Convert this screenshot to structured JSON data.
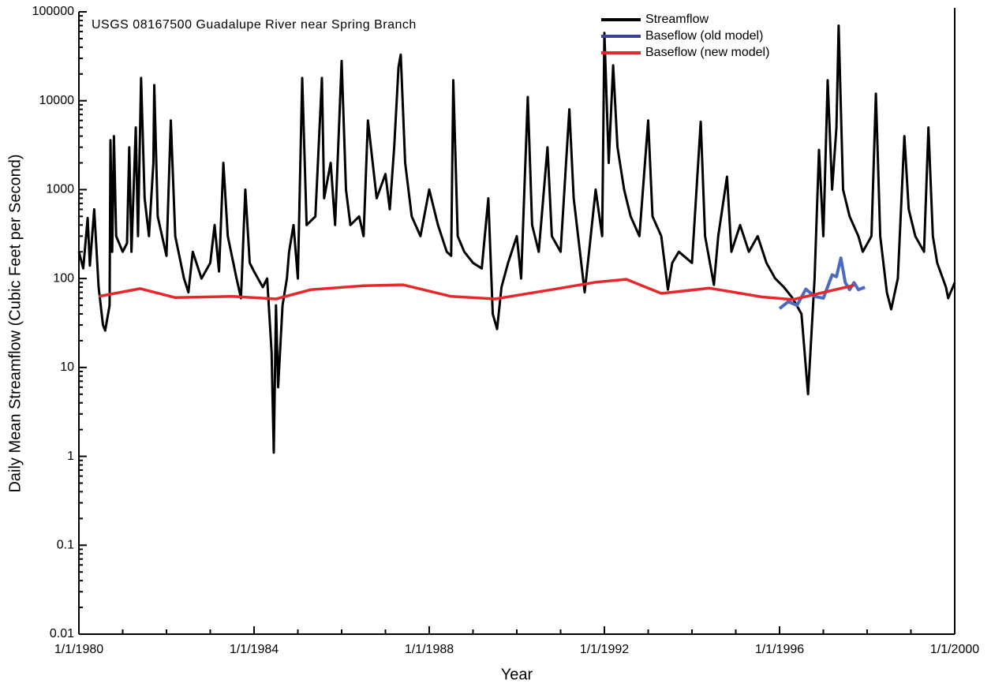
{
  "chart_data": {
    "type": "line",
    "title": "USGS 08167500 Guadalupe River near Spring Branch",
    "x_label": "Year",
    "y_label": "Daily Mean Streamflow (Cubic Feet per Second)",
    "log_y": true,
    "legend": "top-right",
    "xlim": [
      1980,
      2000
    ],
    "xticks": [
      {
        "value": 1980,
        "label": "1/1/1980"
      },
      {
        "value": 1984,
        "label": "1/1/1984"
      },
      {
        "value": 1988,
        "label": "1/1/1988"
      },
      {
        "value": 1992,
        "label": "1/1/1992"
      },
      {
        "value": 1996,
        "label": "1/1/1996"
      },
      {
        "value": 2000,
        "label": "1/1/2000"
      }
    ],
    "ylim": [
      0.01,
      100000
    ],
    "yticks": [
      0.01,
      0.1,
      1,
      10,
      100,
      1000,
      10000,
      100000
    ],
    "series": [
      {
        "name": "Streamflow",
        "color": "#000000",
        "x": [
          1980.0,
          1980.1,
          1980.2,
          1980.25,
          1980.35,
          1980.45,
          1980.55,
          1980.6,
          1980.7,
          1980.72,
          1980.76,
          1980.8,
          1980.85,
          1981.0,
          1981.1,
          1981.15,
          1981.2,
          1981.3,
          1981.35,
          1981.42,
          1981.5,
          1981.6,
          1981.7,
          1981.72,
          1981.8,
          1982.0,
          1982.1,
          1982.2,
          1982.4,
          1982.5,
          1982.6,
          1982.8,
          1983.0,
          1983.1,
          1983.2,
          1983.3,
          1983.4,
          1983.6,
          1983.7,
          1983.8,
          1983.9,
          1984.0,
          1984.2,
          1984.3,
          1984.4,
          1984.45,
          1984.5,
          1984.55,
          1984.65,
          1984.75,
          1984.8,
          1984.9,
          1985.0,
          1985.1,
          1985.2,
          1985.4,
          1985.55,
          1985.6,
          1985.75,
          1985.85,
          1986.0,
          1986.1,
          1986.2,
          1986.4,
          1986.5,
          1986.6,
          1986.8,
          1987.0,
          1987.1,
          1987.2,
          1987.3,
          1987.35,
          1987.45,
          1987.6,
          1987.8,
          1988.0,
          1988.2,
          1988.4,
          1988.5,
          1988.55,
          1988.65,
          1988.8,
          1989.0,
          1989.2,
          1989.35,
          1989.45,
          1989.55,
          1989.65,
          1989.8,
          1990.0,
          1990.1,
          1990.25,
          1990.35,
          1990.5,
          1990.7,
          1990.8,
          1991.0,
          1991.2,
          1991.3,
          1991.4,
          1991.55,
          1991.65,
          1991.8,
          1991.95,
          1992.0,
          1992.1,
          1992.2,
          1992.3,
          1992.45,
          1992.6,
          1992.8,
          1993.0,
          1993.1,
          1993.3,
          1993.45,
          1993.55,
          1993.7,
          1994.0,
          1994.2,
          1994.3,
          1994.5,
          1994.6,
          1994.8,
          1994.9,
          1995.1,
          1995.3,
          1995.5,
          1995.7,
          1995.9,
          1996.1,
          1996.3,
          1996.5,
          1996.65,
          1996.8,
          1996.9,
          1997.0,
          1997.1,
          1997.2,
          1997.3,
          1997.35,
          1997.45,
          1997.6,
          1997.8,
          1997.9,
          1998.1,
          1998.2,
          1998.3,
          1998.45,
          1998.55,
          1998.7,
          1998.85,
          1998.95,
          1999.1,
          1999.3,
          1999.4,
          1999.5,
          1999.6,
          1999.8,
          1999.85,
          2000.0
        ],
        "values": [
          200,
          130,
          480,
          140,
          600,
          80,
          30,
          26,
          50,
          3600,
          200,
          4000,
          300,
          200,
          250,
          3000,
          200,
          5000,
          300,
          18000,
          800,
          300,
          2000,
          15000,
          500,
          180,
          6000,
          300,
          100,
          70,
          200,
          100,
          150,
          400,
          120,
          2000,
          300,
          100,
          60,
          1000,
          150,
          120,
          80,
          100,
          15,
          1.1,
          50,
          6,
          50,
          100,
          200,
          400,
          100,
          18000,
          400,
          500,
          18000,
          800,
          2000,
          400,
          28000,
          1000,
          400,
          500,
          300,
          6000,
          800,
          1500,
          600,
          3000,
          24000,
          33000,
          2000,
          500,
          300,
          1000,
          400,
          200,
          180,
          17000,
          300,
          200,
          150,
          130,
          800,
          40,
          27,
          80,
          150,
          300,
          100,
          11000,
          400,
          200,
          3000,
          300,
          200,
          8000,
          800,
          300,
          70,
          200,
          1000,
          300,
          58000,
          2000,
          25000,
          3000,
          1000,
          500,
          300,
          6000,
          500,
          300,
          75,
          150,
          200,
          150,
          5800,
          300,
          85,
          300,
          1400,
          200,
          400,
          200,
          300,
          150,
          100,
          80,
          60,
          40,
          5,
          100,
          2800,
          300,
          17000,
          1000,
          5000,
          70000,
          1000,
          500,
          300,
          200,
          300,
          12000,
          300,
          70,
          45,
          100,
          4000,
          600,
          300,
          200,
          5000,
          300,
          150,
          80,
          60,
          90
        ]
      },
      {
        "name": "Baseflow (old model)",
        "color": "#4a6bc0",
        "x": [
          1996.0,
          1996.2,
          1996.4,
          1996.6,
          1996.8,
          1997.0,
          1997.2,
          1997.3,
          1997.4,
          1997.5,
          1997.6,
          1997.7,
          1997.8,
          1997.95
        ],
        "values": [
          46,
          55,
          50,
          76,
          63,
          60,
          110,
          105,
          170,
          90,
          75,
          90,
          75,
          80
        ]
      },
      {
        "name": "Baseflow (new model)",
        "color": "#e8262b",
        "x": [
          1980.45,
          1981.4,
          1982.2,
          1983.5,
          1984.5,
          1985.3,
          1986.5,
          1987.4,
          1988.5,
          1989.5,
          1990.8,
          1991.8,
          1992.5,
          1993.3,
          1994.4,
          1995.6,
          1996.3,
          1997.7
        ],
        "values": [
          63,
          77,
          61,
          63,
          59,
          75,
          83,
          85,
          63,
          59,
          75,
          91,
          98,
          68,
          78,
          62,
          58,
          84
        ]
      }
    ]
  }
}
